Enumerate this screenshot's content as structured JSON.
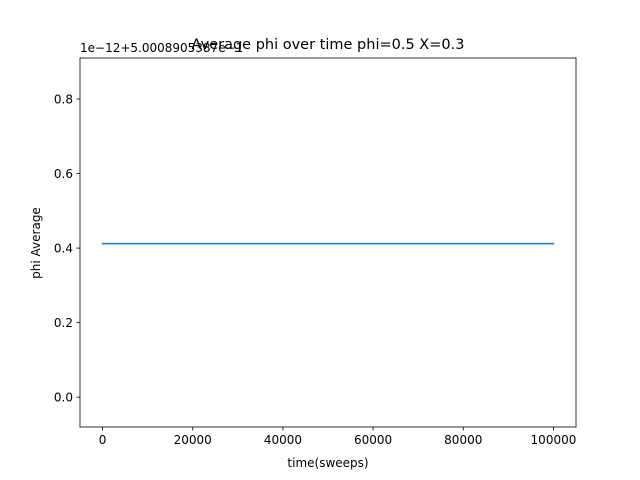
{
  "chart_data": {
    "type": "line",
    "title": "Average phi over time phi=0.5 X=0.3",
    "xlabel": "time(sweeps)",
    "ylabel": "phi Average",
    "y_offset_text": "1e−12+5.0008905387e−1",
    "xlim": [
      -5000,
      105000
    ],
    "ylim": [
      -0.08,
      0.91
    ],
    "x_ticks": [
      0,
      20000,
      40000,
      60000,
      80000,
      100000
    ],
    "x_tick_labels": [
      "0",
      "20000",
      "40000",
      "60000",
      "80000",
      "100000"
    ],
    "y_ticks": [
      0.0,
      0.2,
      0.4,
      0.6,
      0.8
    ],
    "y_tick_labels": [
      "0.0",
      "0.2",
      "0.4",
      "0.6",
      "0.8"
    ],
    "grid": false,
    "series": [
      {
        "color": "#1f77b4",
        "x": [
          0,
          100000
        ],
        "y": [
          0.412,
          0.412
        ]
      }
    ]
  }
}
